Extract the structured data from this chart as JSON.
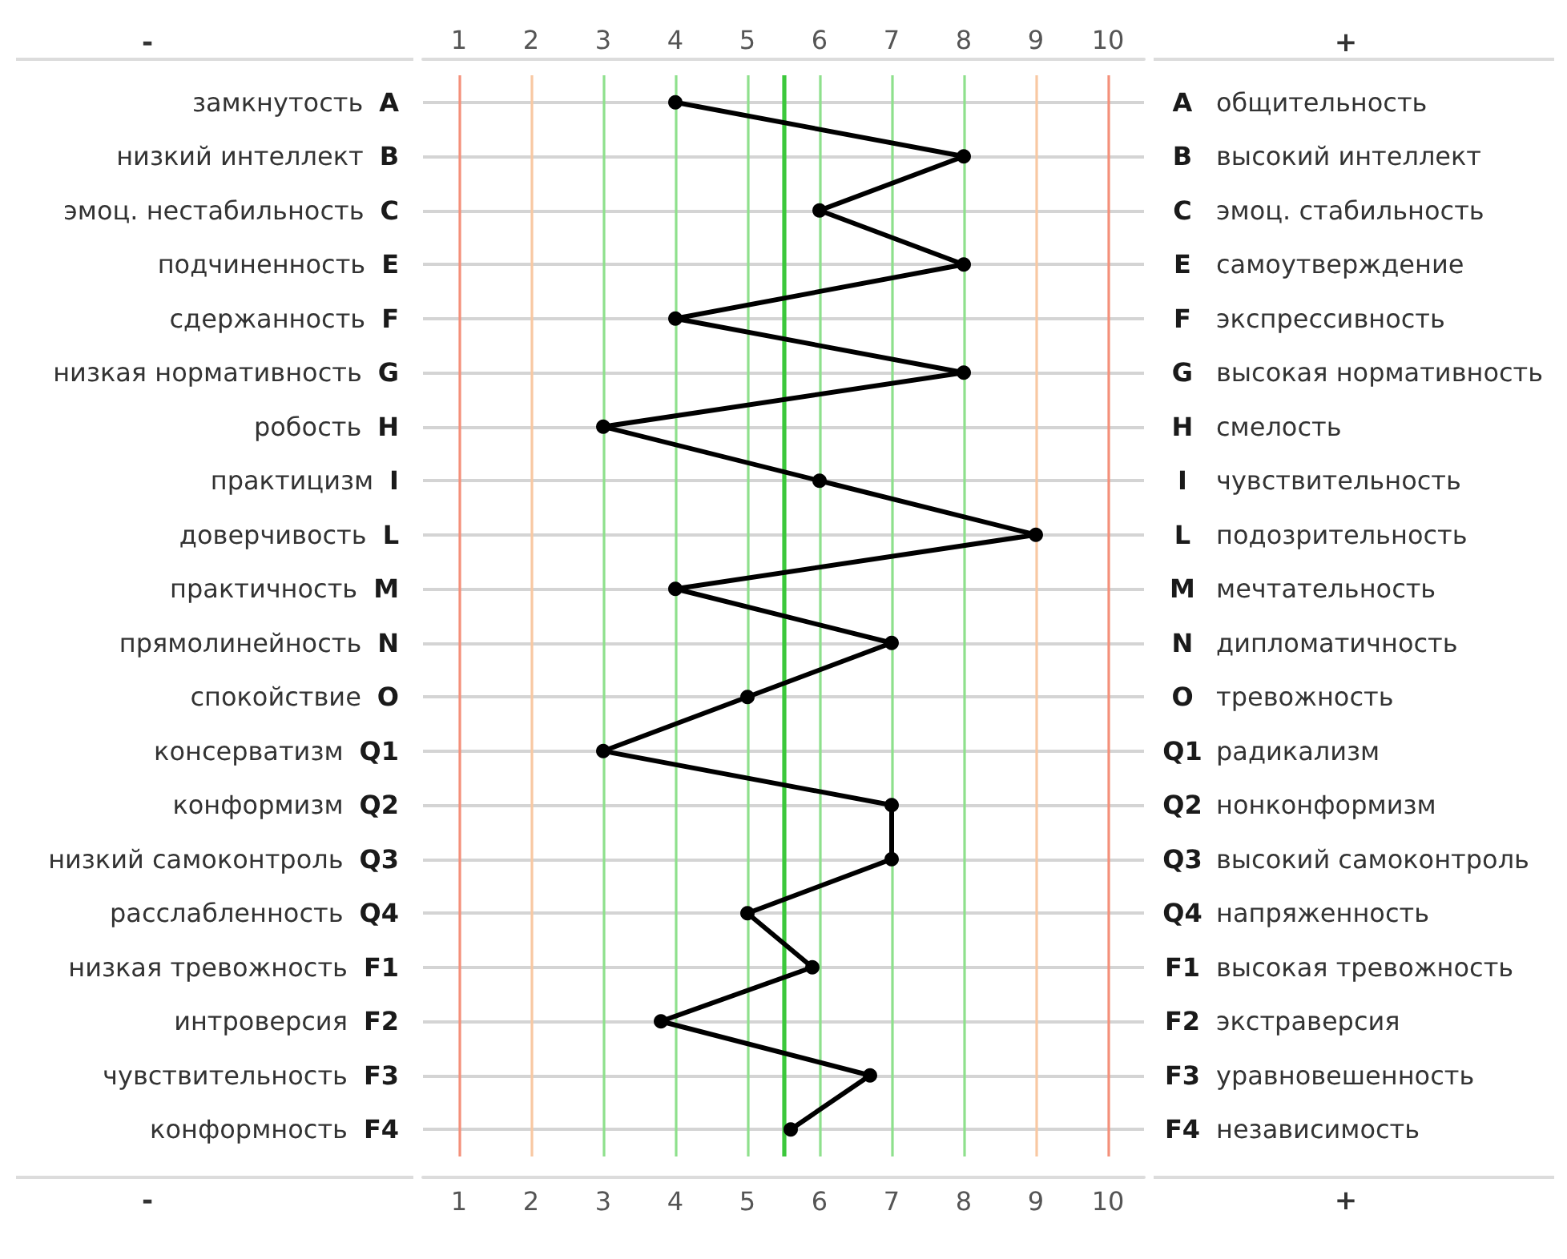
{
  "chart_data": {
    "type": "line",
    "orientation": "horizontal",
    "categories": [
      "замкнутость A",
      "низкий интеллект B",
      "эмоц. нестабильность C",
      "подчиненность E",
      "сдержанность F",
      "низкая нормативность G",
      "робость H",
      "практицизм I",
      "доверчивость L",
      "практичность M",
      "прямолинейность N",
      "спокойствие O",
      "консерватизм Q1",
      "конформизм Q2",
      "низкий самоконтроль Q3",
      "расслабленность Q4",
      "низкая тревожность F1",
      "интроверсия F2",
      "чувствительность F3",
      "конформность F4"
    ],
    "y2_categories": [
      "A общительность",
      "B высокий интеллект",
      "C эмоц. стабильность",
      "E самоутверждение",
      "F экспрессивность",
      "G высокая нормативность",
      "H смелость",
      "I чувствительность",
      "L подозрительность",
      "M мечтательность",
      "N дипломатичность",
      "O тревожность",
      "Q1 радикализм",
      "Q2 нонконформизм",
      "Q3 высокий самоконтроль",
      "Q4 напряженность",
      "F1 высокая тревожность",
      "F2 экстраверсия",
      "F3 уравновешенность",
      "F4 независимость"
    ],
    "values": [
      4,
      8,
      6,
      8,
      4,
      8,
      3,
      6,
      9,
      4,
      7,
      5,
      3,
      7,
      7,
      5,
      5.9,
      3.8,
      6.7,
      5.6
    ],
    "color": "#000000",
    "marker": "circle",
    "line_style": "solid",
    "xlim": [
      0.5,
      10.5
    ],
    "xticks": [
      1,
      2,
      3,
      4,
      5,
      6,
      7,
      8,
      9,
      10
    ],
    "x2lim": [
      0.5,
      10.5
    ],
    "x2ticks": [
      1,
      2,
      3,
      4,
      5,
      6,
      7,
      8,
      9,
      10
    ],
    "grid": "y",
    "ref_lines": [
      {
        "axis": "x",
        "value": 1,
        "color": "#f4907a"
      },
      {
        "axis": "x",
        "value": 2,
        "color": "#f8c8a2"
      },
      {
        "axis": "x",
        "value": 3,
        "color": "#8ee08c"
      },
      {
        "axis": "x",
        "value": 4,
        "color": "#8ee08c"
      },
      {
        "axis": "x",
        "value": 5,
        "color": "#8ee08c"
      },
      {
        "axis": "x",
        "value": 6,
        "color": "#8ee08c"
      },
      {
        "axis": "x",
        "value": 7,
        "color": "#8ee08c"
      },
      {
        "axis": "x",
        "value": 8,
        "color": "#8ee08c"
      },
      {
        "axis": "x",
        "value": 9,
        "color": "#f8c8a2"
      },
      {
        "axis": "x",
        "value": 10,
        "color": "#f4907a"
      },
      {
        "axis": "x",
        "value": 5.5,
        "color": "#3cc83c"
      }
    ],
    "annotations": [
      "-",
      "+",
      "-",
      "+"
    ]
  }
}
